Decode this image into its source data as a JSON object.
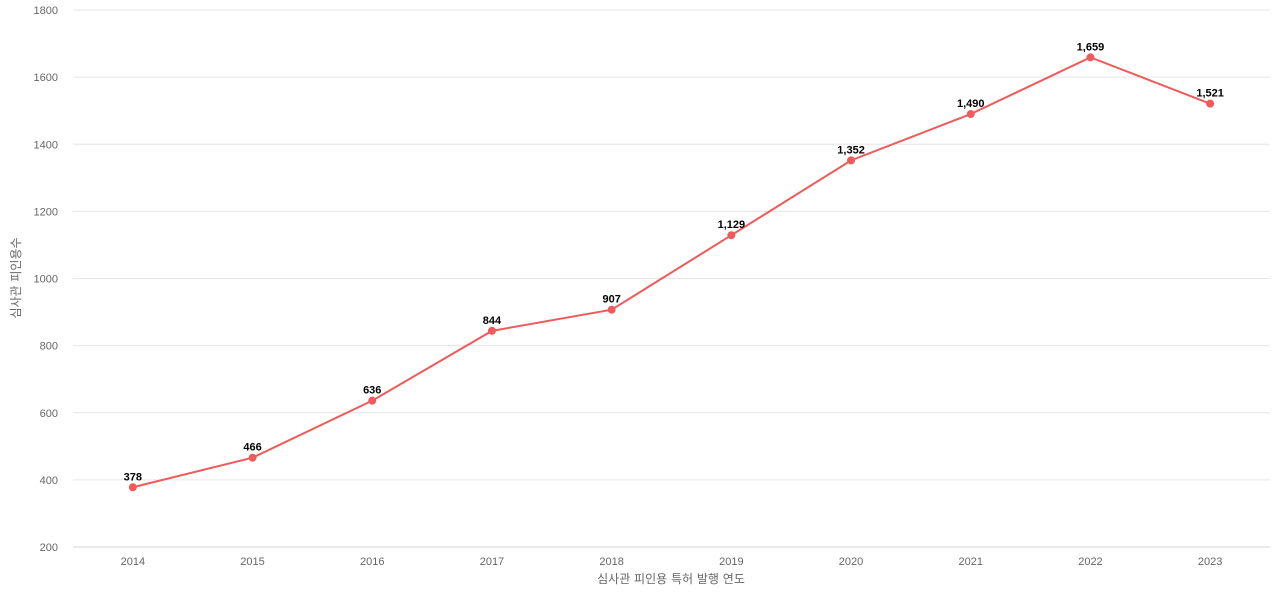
{
  "chart_data": {
    "type": "line",
    "categories": [
      "2014",
      "2015",
      "2016",
      "2017",
      "2018",
      "2019",
      "2020",
      "2021",
      "2022",
      "2023"
    ],
    "series": [
      {
        "values": [
          378,
          466,
          636,
          844,
          907,
          1129,
          1352,
          1490,
          1659,
          1521
        ],
        "labels": [
          "378",
          "466",
          "636",
          "844",
          "907",
          "1,129",
          "1,352",
          "1,490",
          "1,659",
          "1,521"
        ],
        "color": "#ef5a5a"
      }
    ],
    "xlabel": "심사관 피인용 특허 발행 연도",
    "ylabel": "심사관 피인용수",
    "ylim": [
      200,
      1800
    ],
    "yticks": [
      "200",
      "400",
      "600",
      "800",
      "1000",
      "1200",
      "1400",
      "1600",
      "1800"
    ],
    "grid": true,
    "legend": "none"
  }
}
